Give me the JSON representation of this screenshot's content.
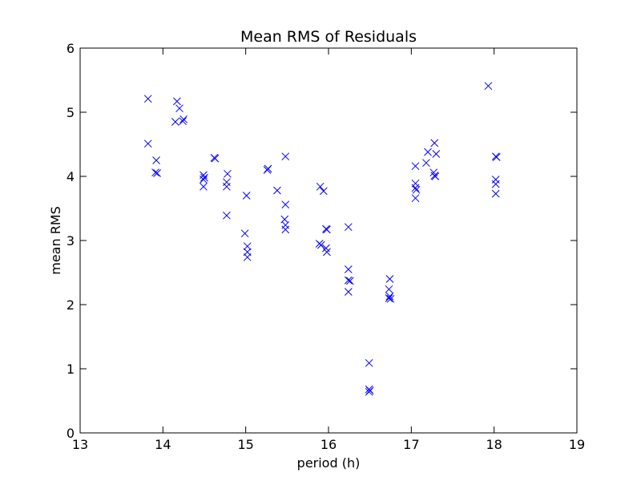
{
  "chart_data": {
    "type": "scatter",
    "title": "Mean RMS of Residuals",
    "xlabel": "period (h)",
    "ylabel": "mean RMS",
    "xlim": [
      13,
      19
    ],
    "ylim": [
      0,
      6
    ],
    "xticks": [
      13,
      14,
      15,
      16,
      17,
      18,
      19
    ],
    "yticks": [
      0,
      1,
      2,
      3,
      4,
      5,
      6
    ],
    "marker": "x",
    "color": "#0000ff",
    "grid": false,
    "legend": "none",
    "series": [
      {
        "points": [
          [
            13.82,
            5.21
          ],
          [
            13.82,
            4.51
          ],
          [
            13.92,
            4.25
          ],
          [
            13.91,
            4.06
          ],
          [
            13.93,
            4.05
          ],
          [
            14.17,
            5.17
          ],
          [
            14.2,
            5.06
          ],
          [
            14.15,
            4.85
          ],
          [
            14.25,
            4.89
          ],
          [
            14.24,
            4.86
          ],
          [
            14.49,
            4.02
          ],
          [
            14.5,
            3.98
          ],
          [
            14.49,
            3.95
          ],
          [
            14.49,
            3.84
          ],
          [
            14.62,
            4.29
          ],
          [
            14.63,
            4.28
          ],
          [
            14.78,
            4.04
          ],
          [
            14.77,
            3.91
          ],
          [
            14.77,
            3.84
          ],
          [
            14.77,
            3.39
          ],
          [
            15.01,
            3.7
          ],
          [
            14.99,
            3.11
          ],
          [
            15.02,
            2.91
          ],
          [
            15.02,
            2.82
          ],
          [
            15.02,
            2.74
          ],
          [
            15.26,
            4.1
          ],
          [
            15.27,
            4.12
          ],
          [
            15.38,
            3.78
          ],
          [
            15.48,
            4.31
          ],
          [
            15.48,
            3.56
          ],
          [
            15.47,
            3.33
          ],
          [
            15.48,
            3.24
          ],
          [
            15.48,
            3.17
          ],
          [
            15.9,
            3.84
          ],
          [
            15.94,
            3.77
          ],
          [
            15.89,
            2.95
          ],
          [
            15.91,
            2.93
          ],
          [
            15.97,
            3.18
          ],
          [
            15.98,
            3.17
          ],
          [
            15.97,
            2.88
          ],
          [
            15.98,
            2.82
          ],
          [
            16.24,
            3.21
          ],
          [
            16.24,
            2.55
          ],
          [
            16.24,
            2.38
          ],
          [
            16.26,
            2.37
          ],
          [
            16.24,
            2.2
          ],
          [
            16.49,
            1.09
          ],
          [
            16.49,
            0.68
          ],
          [
            16.5,
            0.66
          ],
          [
            16.49,
            0.64
          ],
          [
            16.74,
            2.4
          ],
          [
            16.73,
            2.24
          ],
          [
            16.74,
            2.13
          ],
          [
            16.73,
            2.1
          ],
          [
            16.75,
            2.09
          ],
          [
            17.05,
            4.16
          ],
          [
            17.05,
            3.89
          ],
          [
            17.05,
            3.82
          ],
          [
            17.06,
            3.79
          ],
          [
            17.05,
            3.66
          ],
          [
            17.18,
            4.21
          ],
          [
            17.2,
            4.38
          ],
          [
            17.28,
            4.52
          ],
          [
            17.3,
            4.35
          ],
          [
            17.27,
            4.06
          ],
          [
            17.28,
            4.01
          ],
          [
            17.29,
            4.0
          ],
          [
            17.93,
            5.41
          ],
          [
            18.02,
            4.31
          ],
          [
            18.03,
            4.3
          ],
          [
            18.02,
            3.95
          ],
          [
            18.02,
            3.88
          ],
          [
            18.02,
            3.73
          ]
        ]
      }
    ]
  }
}
